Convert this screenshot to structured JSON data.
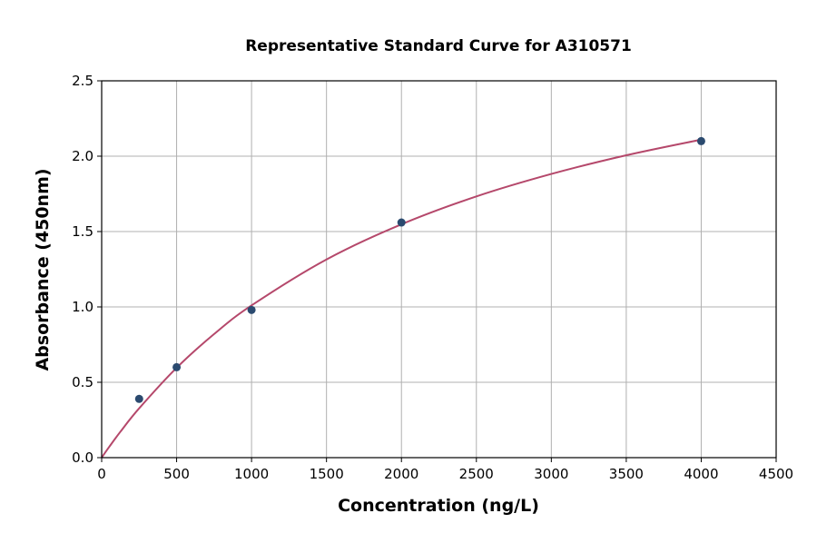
{
  "chart_data": {
    "type": "scatter",
    "title": "Representative Standard Curve for A310571",
    "xlabel": "Concentration (ng/L)",
    "ylabel": "Absorbance (450nm)",
    "xlim": [
      0,
      4500
    ],
    "ylim": [
      0,
      2.5
    ],
    "xticks": [
      0,
      500,
      1000,
      1500,
      2000,
      2500,
      3000,
      3500,
      4000,
      4500
    ],
    "yticks": [
      0.0,
      0.5,
      1.0,
      1.5,
      2.0,
      2.5
    ],
    "ytick_labels": [
      "0.0",
      "0.5",
      "1.0",
      "1.5",
      "2.0",
      "2.5"
    ],
    "grid": true,
    "points": {
      "x": [
        250,
        500,
        1000,
        2000,
        4000
      ],
      "y": [
        0.39,
        0.6,
        0.98,
        1.56,
        2.1
      ],
      "color": "#2b4a6f"
    },
    "fit_curve": {
      "x": [
        0,
        50,
        125,
        250,
        500,
        750,
        1000,
        1500,
        2000,
        2500,
        3000,
        3500,
        4000
      ],
      "y": [
        0,
        0.071,
        0.172,
        0.327,
        0.596,
        0.82,
        1.01,
        1.315,
        1.548,
        1.733,
        1.882,
        2.006,
        2.11
      ],
      "color": "#b5486b"
    }
  }
}
